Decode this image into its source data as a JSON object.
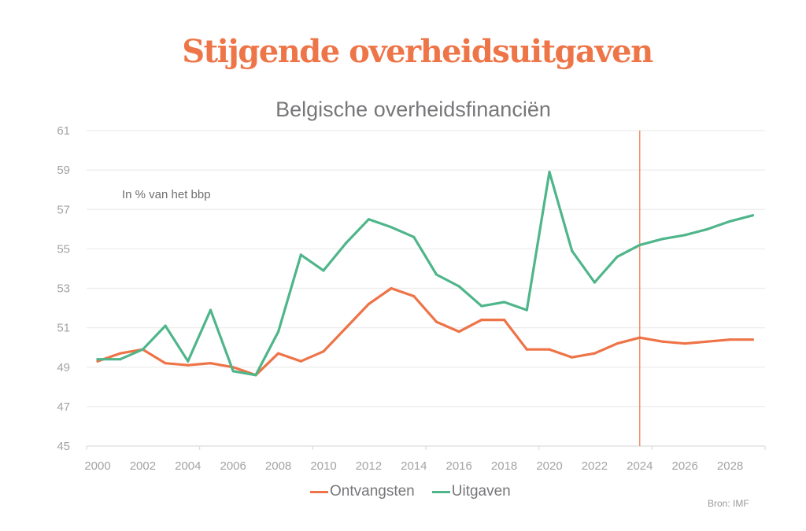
{
  "chart_data": {
    "type": "line",
    "title": "Stijgende overheidsuitgaven",
    "subtitle": "Belgische overheidsfinanciën",
    "annotation": "In % van het bbp",
    "source": "Bron: IMF",
    "xlabel": "",
    "ylabel": "",
    "x": [
      2000,
      2001,
      2002,
      2003,
      2004,
      2005,
      2006,
      2007,
      2008,
      2009,
      2010,
      2011,
      2012,
      2013,
      2014,
      2015,
      2016,
      2017,
      2018,
      2019,
      2020,
      2021,
      2022,
      2023,
      2024,
      2025,
      2026,
      2027,
      2028,
      2029
    ],
    "xticks": [
      "2000",
      "2002",
      "2004",
      "2006",
      "2008",
      "2010",
      "2012",
      "2014",
      "2016",
      "2018",
      "2020",
      "2022",
      "2024",
      "2026",
      "2028"
    ],
    "yticks": [
      "45",
      "47",
      "49",
      "51",
      "53",
      "55",
      "57",
      "59",
      "61"
    ],
    "ylim": [
      45,
      61
    ],
    "xlim": [
      2000,
      2029
    ],
    "grid": true,
    "legend_position": "bottom-center",
    "vertical_marker": {
      "x": 2024,
      "color": "#ee7548",
      "meaning": "forecast start"
    },
    "series": [
      {
        "name": "Ontvangsten",
        "color": "#ee7347",
        "values": [
          49.3,
          49.7,
          49.9,
          49.2,
          49.1,
          49.2,
          49.0,
          48.6,
          49.7,
          49.3,
          49.8,
          51.0,
          52.2,
          53.0,
          52.6,
          51.3,
          50.8,
          51.4,
          51.4,
          49.9,
          49.9,
          49.5,
          49.7,
          50.2,
          50.5,
          50.3,
          50.2,
          50.3,
          50.4,
          50.4
        ]
      },
      {
        "name": "Uitgaven",
        "color": "#4fb58a",
        "values": [
          49.4,
          49.4,
          49.9,
          51.1,
          49.3,
          51.9,
          48.8,
          48.6,
          50.8,
          54.7,
          53.9,
          55.3,
          56.5,
          56.1,
          55.6,
          53.7,
          53.1,
          52.1,
          52.3,
          51.9,
          58.9,
          54.9,
          53.3,
          54.6,
          55.2,
          55.5,
          55.7,
          56.0,
          56.4,
          56.7
        ]
      }
    ]
  }
}
